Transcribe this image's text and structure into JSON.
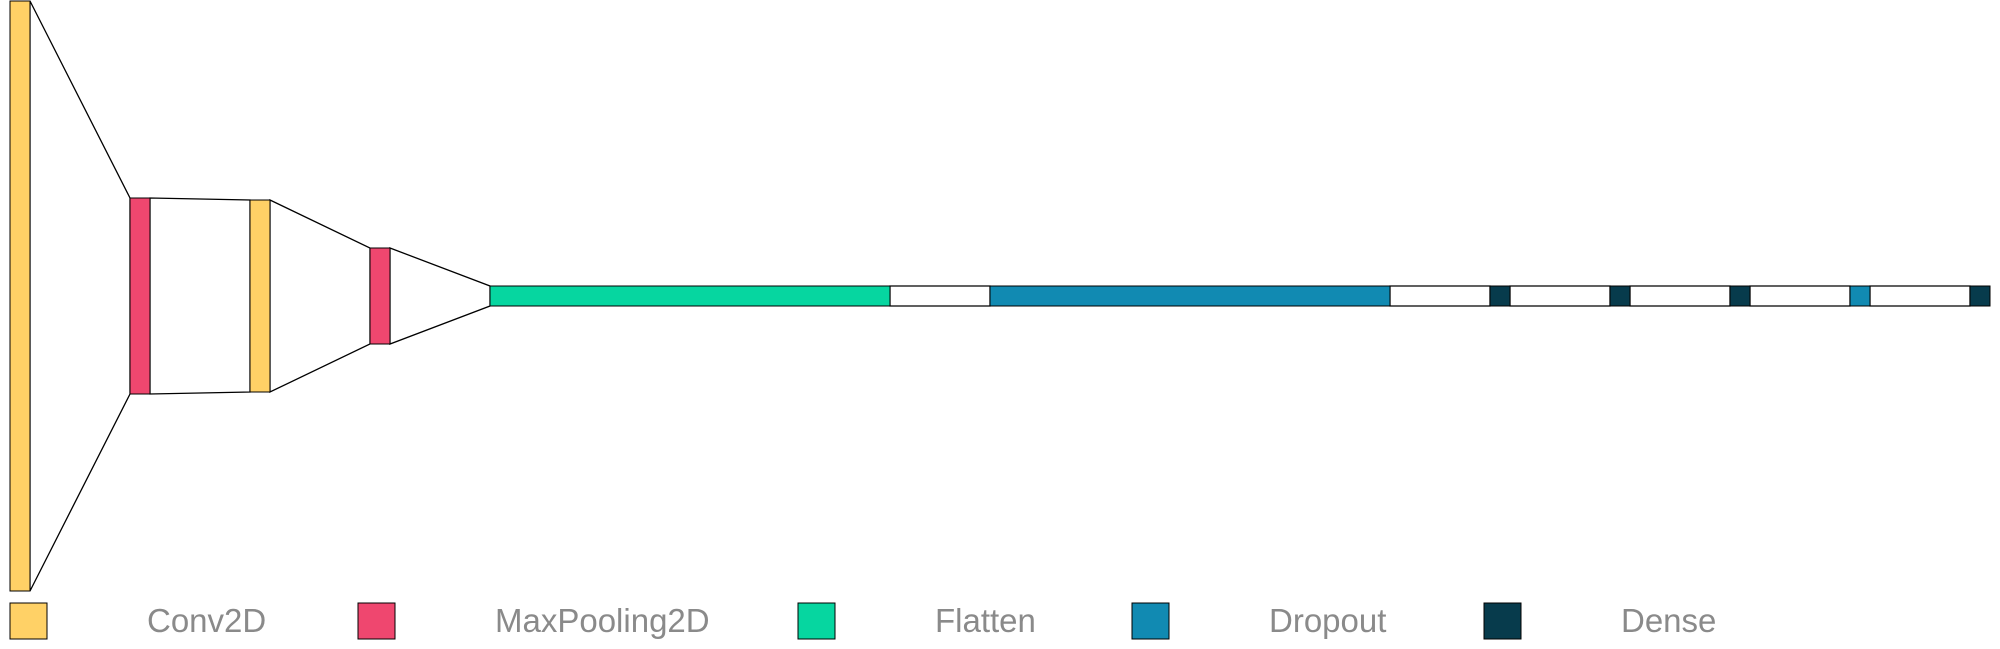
{
  "diagram": {
    "type": "neural-network-layer-diagram",
    "layer_types": {
      "conv2d": {
        "label": "Conv2D",
        "color": "#FFD166"
      },
      "maxpooling2d": {
        "label": "MaxPooling2D",
        "color": "#EF476F"
      },
      "flatten": {
        "label": "Flatten",
        "color": "#06D6A0"
      },
      "dropout": {
        "label": "Dropout",
        "color": "#118AB2"
      },
      "dense": {
        "label": "Dense",
        "color": "#073B4C"
      }
    },
    "layers": [
      {
        "type": "conv2d"
      },
      {
        "type": "maxpooling2d"
      },
      {
        "type": "conv2d"
      },
      {
        "type": "maxpooling2d"
      },
      {
        "type": "flatten"
      },
      {
        "type": "dropout"
      },
      {
        "type": "dense"
      },
      {
        "type": "dense"
      },
      {
        "type": "dense"
      },
      {
        "type": "dropout"
      },
      {
        "type": "dense"
      }
    ],
    "legend": [
      {
        "type": "conv2d",
        "label": "Conv2D",
        "color": "#FFD166"
      },
      {
        "type": "maxpooling2d",
        "label": "MaxPooling2D",
        "color": "#EF476F"
      },
      {
        "type": "flatten",
        "label": "Flatten",
        "color": "#06D6A0"
      },
      {
        "type": "dropout",
        "label": "Dropout",
        "color": "#118AB2"
      },
      {
        "type": "dense",
        "label": "Dense",
        "color": "#073B4C"
      }
    ]
  }
}
